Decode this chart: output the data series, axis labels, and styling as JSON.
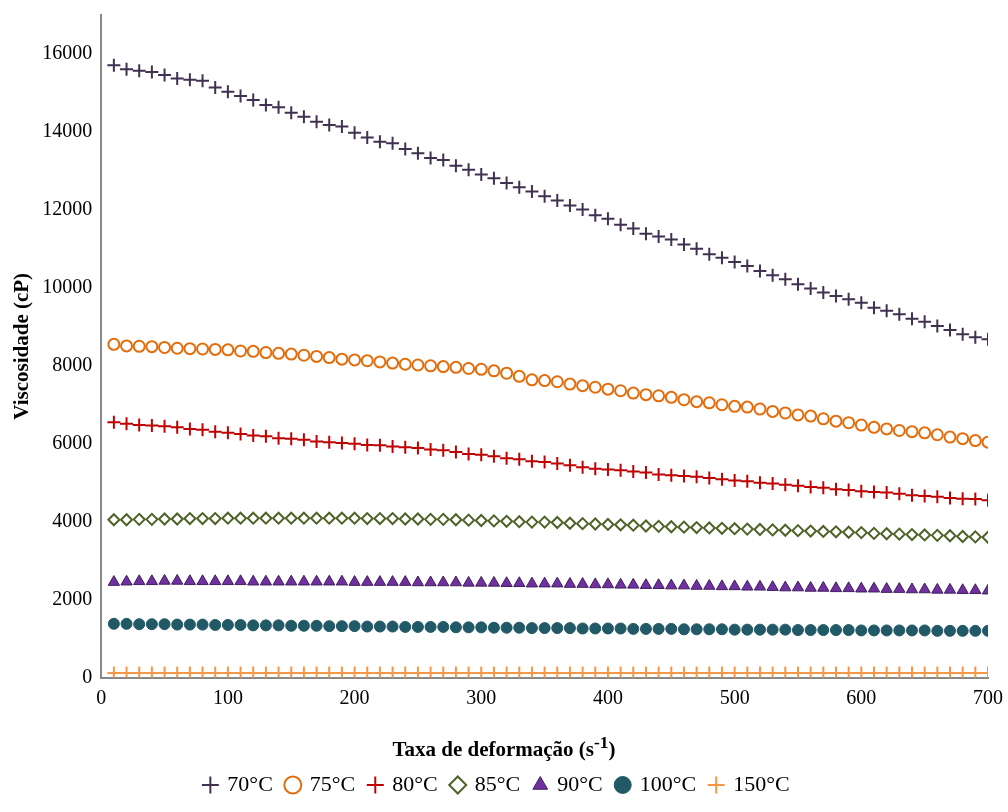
{
  "chart_data": {
    "type": "scatter",
    "xlabel": "Taxa de deformação (s$^{-1}$)",
    "ylabel": "Viscosidade (cP)",
    "x": [
      10,
      20,
      30,
      40,
      50,
      60,
      70,
      80,
      90,
      100,
      110,
      120,
      130,
      140,
      150,
      160,
      170,
      180,
      190,
      200,
      210,
      220,
      230,
      240,
      250,
      260,
      270,
      280,
      290,
      300,
      310,
      320,
      330,
      340,
      350,
      360,
      370,
      380,
      390,
      400,
      410,
      420,
      430,
      440,
      450,
      460,
      470,
      480,
      490,
      500,
      510,
      520,
      530,
      540,
      550,
      560,
      570,
      580,
      590,
      600,
      610,
      620,
      630,
      640,
      650,
      660,
      670,
      680,
      690,
      700
    ],
    "xlim": [
      0,
      700
    ],
    "xticks": [
      0,
      100,
      200,
      300,
      400,
      500,
      600,
      700
    ],
    "ylim": [
      0,
      17000
    ],
    "yticks": [
      0,
      2000,
      4000,
      6000,
      8000,
      10000,
      12000,
      14000,
      16000
    ],
    "grid": false,
    "legend": "bottom",
    "series": [
      {
        "name": "70°C",
        "color": "#403151",
        "marker": "cross",
        "values": [
          15710,
          15610,
          15570,
          15540,
          15460,
          15370,
          15340,
          15310,
          15140,
          15030,
          14920,
          14820,
          14690,
          14630,
          14490,
          14390,
          14260,
          14180,
          14140,
          13980,
          13860,
          13750,
          13710,
          13560,
          13450,
          13330,
          13280,
          13130,
          13030,
          12910,
          12810,
          12690,
          12580,
          12470,
          12350,
          12240,
          12110,
          12010,
          11860,
          11770,
          11620,
          11520,
          11390,
          11320,
          11240,
          11110,
          11000,
          10860,
          10770,
          10660,
          10560,
          10430,
          10320,
          10220,
          10090,
          9980,
          9880,
          9790,
          9710,
          9620,
          9490,
          9410,
          9320,
          9210,
          9130,
          9020,
          8920,
          8810,
          8730,
          8680
        ]
      },
      {
        "name": "75°C",
        "color": "#e46c0a",
        "marker": "circle-open",
        "values": [
          8550,
          8510,
          8500,
          8490,
          8470,
          8450,
          8440,
          8430,
          8420,
          8410,
          8380,
          8370,
          8340,
          8320,
          8300,
          8270,
          8240,
          8210,
          8170,
          8150,
          8130,
          8100,
          8070,
          8040,
          8020,
          8000,
          7980,
          7960,
          7930,
          7910,
          7870,
          7810,
          7730,
          7640,
          7620,
          7590,
          7530,
          7490,
          7450,
          7400,
          7360,
          7300,
          7260,
          7230,
          7190,
          7130,
          7080,
          7050,
          7000,
          6960,
          6940,
          6890,
          6830,
          6790,
          6740,
          6710,
          6640,
          6580,
          6540,
          6480,
          6420,
          6380,
          6340,
          6310,
          6280,
          6230,
          6170,
          6130,
          6080,
          6040
        ]
      },
      {
        "name": "80°C",
        "color": "#c00000",
        "marker": "cross",
        "values": [
          6550,
          6510,
          6480,
          6470,
          6450,
          6420,
          6380,
          6360,
          6310,
          6280,
          6250,
          6210,
          6190,
          6140,
          6130,
          6100,
          6060,
          6040,
          6020,
          6000,
          5970,
          5960,
          5930,
          5910,
          5890,
          5850,
          5830,
          5790,
          5740,
          5720,
          5680,
          5630,
          5600,
          5550,
          5530,
          5490,
          5450,
          5400,
          5360,
          5340,
          5320,
          5290,
          5260,
          5210,
          5190,
          5170,
          5150,
          5120,
          5090,
          5060,
          5040,
          5000,
          4980,
          4950,
          4920,
          4890,
          4870,
          4830,
          4810,
          4780,
          4760,
          4750,
          4720,
          4680,
          4660,
          4640,
          4610,
          4590,
          4580,
          4550
        ]
      },
      {
        "name": "85°C",
        "color": "#4f6228",
        "marker": "diamond-open",
        "values": [
          4050,
          4050,
          4060,
          4060,
          4070,
          4070,
          4080,
          4080,
          4080,
          4090,
          4090,
          4090,
          4090,
          4090,
          4090,
          4090,
          4090,
          4090,
          4090,
          4090,
          4080,
          4080,
          4080,
          4070,
          4070,
          4060,
          4060,
          4050,
          4040,
          4030,
          4020,
          4010,
          4000,
          3990,
          3990,
          3980,
          3960,
          3950,
          3940,
          3930,
          3920,
          3910,
          3890,
          3880,
          3870,
          3860,
          3850,
          3840,
          3830,
          3820,
          3810,
          3800,
          3790,
          3780,
          3770,
          3760,
          3750,
          3740,
          3730,
          3720,
          3700,
          3690,
          3680,
          3670,
          3660,
          3650,
          3640,
          3620,
          3610,
          3600
        ]
      },
      {
        "name": "90°C",
        "color": "#7030a0",
        "marker": "triangle",
        "values": [
          2450,
          2460,
          2470,
          2470,
          2480,
          2480,
          2470,
          2470,
          2470,
          2470,
          2470,
          2460,
          2460,
          2460,
          2460,
          2460,
          2460,
          2460,
          2460,
          2450,
          2450,
          2450,
          2450,
          2450,
          2440,
          2440,
          2440,
          2440,
          2430,
          2430,
          2430,
          2420,
          2420,
          2410,
          2410,
          2410,
          2400,
          2400,
          2390,
          2390,
          2380,
          2380,
          2370,
          2370,
          2360,
          2360,
          2350,
          2350,
          2340,
          2340,
          2330,
          2330,
          2320,
          2310,
          2310,
          2300,
          2300,
          2290,
          2290,
          2280,
          2280,
          2270,
          2270,
          2260,
          2260,
          2250,
          2250,
          2240,
          2240,
          2230
        ]
      },
      {
        "name": "100°C",
        "color": "#215967",
        "marker": "circle",
        "values": [
          1380,
          1380,
          1370,
          1370,
          1370,
          1360,
          1360,
          1360,
          1350,
          1350,
          1350,
          1340,
          1340,
          1340,
          1330,
          1330,
          1330,
          1320,
          1320,
          1320,
          1310,
          1310,
          1310,
          1300,
          1300,
          1300,
          1300,
          1290,
          1290,
          1290,
          1280,
          1280,
          1280,
          1270,
          1270,
          1270,
          1270,
          1260,
          1260,
          1260,
          1260,
          1250,
          1250,
          1250,
          1250,
          1240,
          1240,
          1240,
          1240,
          1230,
          1230,
          1230,
          1230,
          1230,
          1220,
          1220,
          1220,
          1220,
          1220,
          1210,
          1210,
          1210,
          1210,
          1210,
          1210,
          1200,
          1200,
          1200,
          1200,
          1200
        ]
      },
      {
        "name": "150°C",
        "color": "#f79646",
        "marker": "cross",
        "values": [
          120,
          120,
          120,
          120,
          120,
          120,
          120,
          120,
          120,
          120,
          120,
          120,
          120,
          120,
          120,
          120,
          120,
          120,
          120,
          120,
          120,
          120,
          120,
          120,
          120,
          120,
          120,
          120,
          120,
          120,
          120,
          120,
          120,
          120,
          120,
          120,
          120,
          120,
          120,
          120,
          120,
          120,
          120,
          120,
          120,
          120,
          120,
          120,
          120,
          120,
          120,
          120,
          120,
          120,
          120,
          120,
          120,
          120,
          120,
          120,
          120,
          120,
          120,
          120,
          120,
          120,
          120,
          120,
          120,
          120
        ]
      }
    ]
  }
}
